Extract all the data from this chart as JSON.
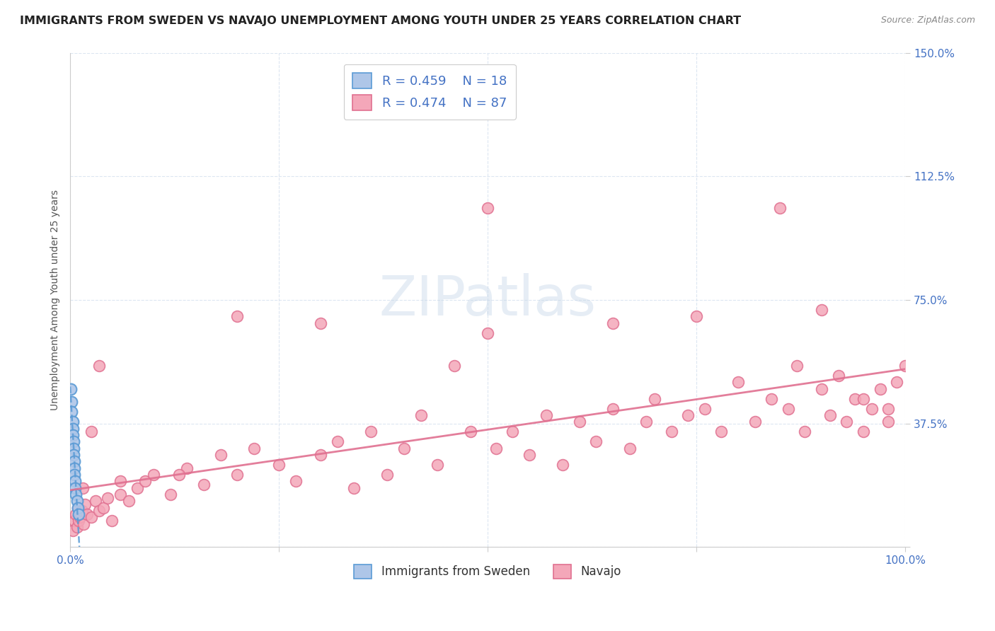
{
  "title": "IMMIGRANTS FROM SWEDEN VS NAVAJO UNEMPLOYMENT AMONG YOUTH UNDER 25 YEARS CORRELATION CHART",
  "source": "Source: ZipAtlas.com",
  "ylabel": "Unemployment Among Youth under 25 years",
  "xlim": [
    0.0,
    1.0
  ],
  "ylim": [
    0.0,
    1.5
  ],
  "xtick_positions": [
    0.0,
    0.25,
    0.5,
    0.75,
    1.0
  ],
  "xticklabels": [
    "0.0%",
    "",
    "",
    "",
    "100.0%"
  ],
  "ytick_positions": [
    0.0,
    0.375,
    0.75,
    1.125,
    1.5
  ],
  "yticklabels": [
    "",
    "37.5%",
    "75.0%",
    "112.5%",
    "150.0%"
  ],
  "ytick_color": "#4472c4",
  "xtick_color": "#4472c4",
  "background_color": "#ffffff",
  "sweden_color": "#aec6e8",
  "navajo_color": "#f4a7b9",
  "sweden_edge": "#5b9bd5",
  "navajo_edge": "#e07090",
  "trendline_sweden_color": "#5b9bd5",
  "trendline_navajo_color": "#e07090",
  "grid_color": "#dce6f1",
  "title_fontsize": 11.5,
  "axis_fontsize": 10,
  "tick_fontsize": 11,
  "sweden_x": [
    0.001,
    0.002,
    0.002,
    0.003,
    0.003,
    0.003,
    0.004,
    0.004,
    0.004,
    0.005,
    0.005,
    0.005,
    0.006,
    0.006,
    0.007,
    0.008,
    0.009,
    0.01
  ],
  "sweden_y": [
    0.48,
    0.44,
    0.41,
    0.38,
    0.36,
    0.34,
    0.32,
    0.3,
    0.28,
    0.26,
    0.24,
    0.22,
    0.2,
    0.18,
    0.16,
    0.14,
    0.12,
    0.1
  ],
  "navajo_x": [
    0.003,
    0.005,
    0.007,
    0.008,
    0.009,
    0.01,
    0.012,
    0.014,
    0.016,
    0.018,
    0.02,
    0.025,
    0.03,
    0.035,
    0.04,
    0.045,
    0.05,
    0.06,
    0.07,
    0.08,
    0.09,
    0.1,
    0.12,
    0.14,
    0.16,
    0.18,
    0.2,
    0.22,
    0.25,
    0.27,
    0.3,
    0.32,
    0.34,
    0.36,
    0.38,
    0.4,
    0.42,
    0.44,
    0.46,
    0.48,
    0.5,
    0.51,
    0.53,
    0.55,
    0.57,
    0.59,
    0.61,
    0.63,
    0.65,
    0.67,
    0.69,
    0.7,
    0.72,
    0.74,
    0.76,
    0.78,
    0.8,
    0.82,
    0.84,
    0.86,
    0.87,
    0.88,
    0.9,
    0.91,
    0.92,
    0.93,
    0.94,
    0.95,
    0.96,
    0.97,
    0.98,
    0.99,
    1.0,
    0.015,
    0.025,
    0.035,
    0.2,
    0.3,
    0.5,
    0.65,
    0.75,
    0.85,
    0.9,
    0.95,
    0.98,
    0.06,
    0.13
  ],
  "navajo_y": [
    0.05,
    0.08,
    0.1,
    0.06,
    0.12,
    0.08,
    0.09,
    0.11,
    0.07,
    0.13,
    0.1,
    0.09,
    0.14,
    0.11,
    0.12,
    0.15,
    0.08,
    0.16,
    0.14,
    0.18,
    0.2,
    0.22,
    0.16,
    0.24,
    0.19,
    0.28,
    0.22,
    0.3,
    0.25,
    0.2,
    0.28,
    0.32,
    0.18,
    0.35,
    0.22,
    0.3,
    0.4,
    0.25,
    0.55,
    0.35,
    0.65,
    0.3,
    0.35,
    0.28,
    0.4,
    0.25,
    0.38,
    0.32,
    0.42,
    0.3,
    0.38,
    0.45,
    0.35,
    0.4,
    0.42,
    0.35,
    0.5,
    0.38,
    0.45,
    0.42,
    0.55,
    0.35,
    0.48,
    0.4,
    0.52,
    0.38,
    0.45,
    0.35,
    0.42,
    0.48,
    0.38,
    0.5,
    0.55,
    0.18,
    0.35,
    0.55,
    0.7,
    0.68,
    1.03,
    0.68,
    0.7,
    1.03,
    0.72,
    0.45,
    0.42,
    0.2,
    0.22
  ],
  "navajo_trend_x0": 0.0,
  "navajo_trend_x1": 1.0,
  "navajo_trend_y0": 0.13,
  "navajo_trend_y1": 0.5
}
